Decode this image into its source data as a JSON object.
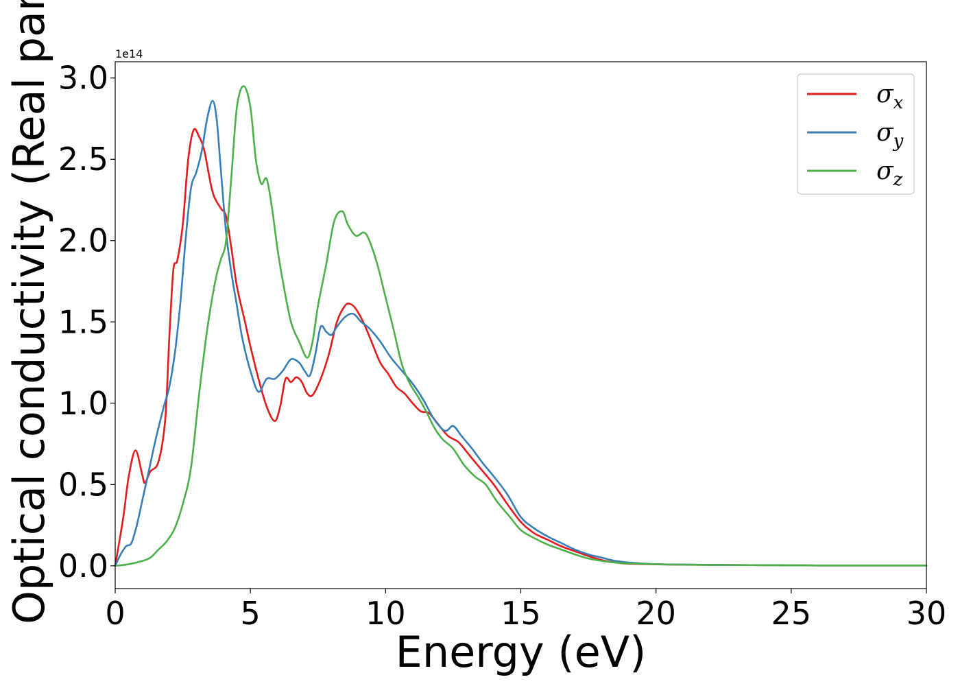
{
  "chart_data": {
    "type": "line",
    "title": "",
    "xlabel": "Energy (eV)",
    "ylabel": "Optical conductivity (Real part)",
    "y_offset_label": "1e14",
    "xlim": [
      0,
      30
    ],
    "ylim": [
      -0.14,
      3.1
    ],
    "xticks": [
      0,
      5,
      10,
      15,
      20,
      25,
      30
    ],
    "xtick_labels": [
      "0",
      "5",
      "10",
      "15",
      "20",
      "25",
      "30"
    ],
    "yticks": [
      0.0,
      0.5,
      1.0,
      1.5,
      2.0,
      2.5,
      3.0
    ],
    "ytick_labels": [
      "0.0",
      "0.5",
      "1.0",
      "1.5",
      "2.0",
      "2.5",
      "3.0"
    ],
    "grid": false,
    "legend_position": "top-right",
    "series": [
      {
        "name": "σx",
        "legend_symbol": "σ",
        "legend_sub": "x",
        "color": "#e41a1c",
        "x": [
          0,
          0.3,
          0.5,
          0.75,
          1.0,
          1.1,
          1.3,
          1.6,
          1.85,
          2.0,
          2.15,
          2.3,
          2.5,
          2.7,
          2.9,
          3.1,
          3.3,
          3.6,
          3.9,
          4.1,
          4.3,
          4.5,
          4.8,
          5.0,
          5.3,
          5.6,
          5.9,
          6.1,
          6.3,
          6.5,
          6.7,
          6.9,
          7.1,
          7.3,
          7.6,
          7.9,
          8.2,
          8.5,
          8.7,
          8.9,
          9.2,
          9.5,
          9.8,
          10.1,
          10.4,
          10.7,
          11.0,
          11.3,
          11.6,
          11.9,
          12.3,
          12.7,
          13.1,
          13.5,
          14.0,
          14.5,
          15.0,
          15.5,
          16.0,
          16.5,
          17.0,
          17.5,
          18.0,
          18.5,
          19.0,
          20.0,
          21.0,
          22.0,
          23.0,
          24.0,
          25.0,
          26.0,
          27.0,
          28.0,
          29.0,
          30.0
        ],
        "y": [
          0.0,
          0.3,
          0.55,
          0.71,
          0.56,
          0.51,
          0.58,
          0.64,
          0.9,
          1.4,
          1.82,
          1.88,
          2.1,
          2.5,
          2.68,
          2.64,
          2.55,
          2.3,
          2.2,
          2.15,
          1.95,
          1.72,
          1.5,
          1.35,
          1.15,
          0.98,
          0.89,
          0.98,
          1.15,
          1.13,
          1.16,
          1.13,
          1.06,
          1.05,
          1.15,
          1.3,
          1.5,
          1.6,
          1.61,
          1.58,
          1.49,
          1.37,
          1.25,
          1.18,
          1.1,
          1.06,
          1.0,
          0.95,
          0.94,
          0.88,
          0.8,
          0.76,
          0.68,
          0.6,
          0.5,
          0.38,
          0.27,
          0.2,
          0.16,
          0.12,
          0.09,
          0.06,
          0.035,
          0.02,
          0.013,
          0.009,
          0.007,
          0.006,
          0.005,
          0.004,
          0.003,
          0.002,
          0.002,
          0.002,
          0.002,
          0.002
        ]
      },
      {
        "name": "σy",
        "legend_symbol": "σ",
        "legend_sub": "y",
        "color": "#377eb8",
        "x": [
          0,
          0.2,
          0.4,
          0.6,
          0.8,
          1.0,
          1.2,
          1.5,
          1.8,
          2.0,
          2.2,
          2.4,
          2.6,
          2.8,
          3.0,
          3.2,
          3.4,
          3.6,
          3.75,
          3.9,
          4.1,
          4.3,
          4.5,
          4.7,
          5.0,
          5.3,
          5.6,
          5.9,
          6.2,
          6.5,
          6.8,
          7.0,
          7.2,
          7.4,
          7.6,
          7.8,
          8.0,
          8.2,
          8.5,
          8.8,
          9.1,
          9.4,
          9.8,
          10.2,
          10.6,
          11.0,
          11.4,
          11.8,
          12.2,
          12.5,
          12.8,
          13.2,
          13.6,
          14.0,
          14.5,
          15.0,
          15.5,
          16.0,
          16.5,
          17.0,
          17.5,
          18.0,
          18.5,
          19.0,
          20.0,
          21.0,
          22.0,
          23.0,
          24.0,
          25.0,
          26.0,
          27.0,
          28.0,
          29.0,
          30.0
        ],
        "y": [
          0.0,
          0.07,
          0.12,
          0.14,
          0.25,
          0.4,
          0.55,
          0.78,
          0.98,
          1.1,
          1.3,
          1.6,
          2.0,
          2.32,
          2.42,
          2.55,
          2.75,
          2.86,
          2.75,
          2.45,
          2.05,
          1.8,
          1.6,
          1.4,
          1.2,
          1.07,
          1.15,
          1.15,
          1.2,
          1.27,
          1.25,
          1.2,
          1.17,
          1.3,
          1.47,
          1.44,
          1.42,
          1.47,
          1.53,
          1.55,
          1.5,
          1.46,
          1.38,
          1.28,
          1.2,
          1.12,
          1.02,
          0.9,
          0.83,
          0.86,
          0.8,
          0.72,
          0.63,
          0.55,
          0.44,
          0.3,
          0.23,
          0.18,
          0.14,
          0.1,
          0.07,
          0.05,
          0.03,
          0.02,
          0.01,
          0.008,
          0.006,
          0.005,
          0.004,
          0.003,
          0.002,
          0.002,
          0.002,
          0.002,
          0.002
        ]
      },
      {
        "name": "σz",
        "legend_symbol": "σ",
        "legend_sub": "z",
        "color": "#4daf4a",
        "x": [
          0,
          0.5,
          1.0,
          1.3,
          1.6,
          1.9,
          2.2,
          2.5,
          2.8,
          3.1,
          3.4,
          3.7,
          3.9,
          4.1,
          4.3,
          4.5,
          4.75,
          5.0,
          5.2,
          5.4,
          5.6,
          5.8,
          6.0,
          6.2,
          6.5,
          6.8,
          7.1,
          7.3,
          7.5,
          7.8,
          8.1,
          8.4,
          8.6,
          8.9,
          9.2,
          9.4,
          9.7,
          10.0,
          10.3,
          10.6,
          10.9,
          11.2,
          11.5,
          11.8,
          12.1,
          12.5,
          12.9,
          13.3,
          13.7,
          14.1,
          14.6,
          15.0,
          15.5,
          16.0,
          16.5,
          17.0,
          17.5,
          18.0,
          18.5,
          19.0,
          20.0,
          21.0,
          22.0,
          23.0,
          24.0,
          25.0,
          26.0,
          27.0,
          28.0,
          29.0,
          30.0
        ],
        "y": [
          0.0,
          0.01,
          0.03,
          0.05,
          0.1,
          0.15,
          0.23,
          0.38,
          0.6,
          1.05,
          1.45,
          1.75,
          1.88,
          2.0,
          2.4,
          2.82,
          2.95,
          2.82,
          2.5,
          2.35,
          2.38,
          2.2,
          1.95,
          1.75,
          1.5,
          1.38,
          1.28,
          1.38,
          1.6,
          1.85,
          2.12,
          2.18,
          2.1,
          2.03,
          2.05,
          2.0,
          1.85,
          1.65,
          1.45,
          1.24,
          1.12,
          1.04,
          0.95,
          0.85,
          0.78,
          0.72,
          0.62,
          0.55,
          0.5,
          0.4,
          0.3,
          0.22,
          0.17,
          0.13,
          0.1,
          0.07,
          0.045,
          0.03,
          0.02,
          0.015,
          0.01,
          0.007,
          0.006,
          0.005,
          0.004,
          0.003,
          0.002,
          0.002,
          0.002,
          0.002,
          0.002
        ]
      }
    ]
  }
}
